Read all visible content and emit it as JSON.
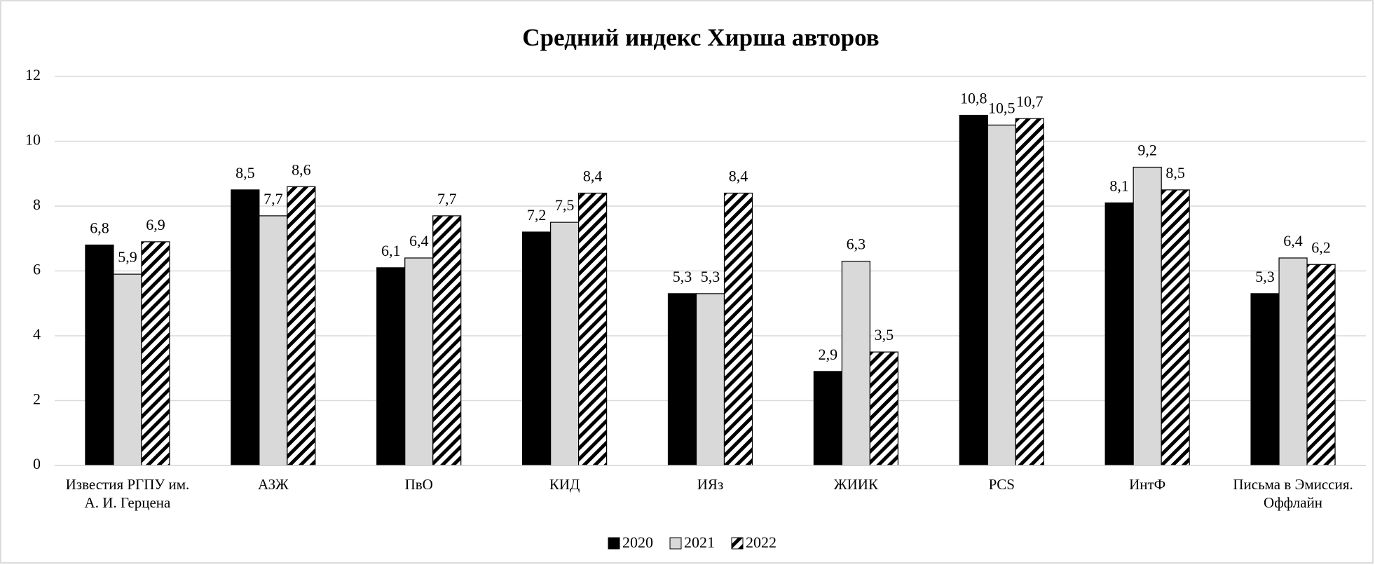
{
  "chart_data": {
    "type": "bar",
    "title": "Средний индекс Хирша авторов",
    "categories": [
      "Известия РГПУ им. А. И. Герцена",
      "АЗЖ",
      "ПвО",
      "КИД",
      "ИЯз",
      "ЖИИК",
      "PCS",
      "ИнтФ",
      "Письма в Эмиссия. Оффлайн"
    ],
    "series": [
      {
        "name": "2020",
        "color": "#000000",
        "values": [
          6.8,
          8.5,
          6.1,
          7.2,
          5.3,
          2.9,
          10.8,
          8.1,
          5.3
        ],
        "value_labels": [
          "6,8",
          "8,5",
          "6,1",
          "7,2",
          "5,3",
          "2,9",
          "10,8",
          "8,1",
          "5,3"
        ]
      },
      {
        "name": "2021",
        "color": "#d9d9d9",
        "values": [
          5.9,
          7.7,
          6.4,
          7.5,
          5.3,
          6.3,
          10.5,
          9.2,
          6.4
        ],
        "value_labels": [
          "5,9",
          "7,7",
          "6,4",
          "7,5",
          "5,3",
          "6,3",
          "10,5",
          "9,2",
          "6,4"
        ]
      },
      {
        "name": "2022",
        "color": "#000000",
        "hatch": true,
        "values": [
          6.9,
          8.6,
          7.7,
          8.4,
          8.4,
          3.5,
          10.7,
          8.5,
          6.2
        ],
        "value_labels": [
          "6,9",
          "8,6",
          "7,7",
          "8,4",
          "8,4",
          "3,5",
          "10,7",
          "8,5",
          "6,2"
        ]
      }
    ],
    "ylim": [
      0,
      12
    ],
    "yticks": [
      0,
      2,
      4,
      6,
      8,
      10,
      12
    ],
    "grid": true,
    "legend": "bottom"
  }
}
